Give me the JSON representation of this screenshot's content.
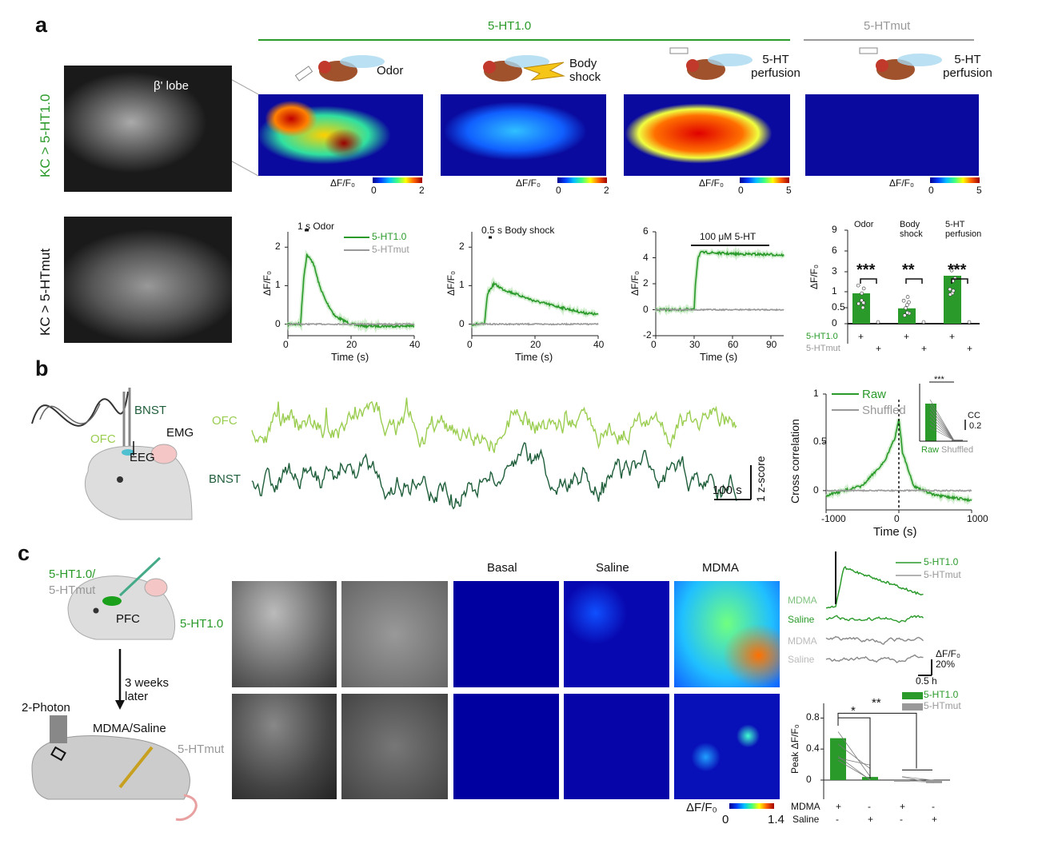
{
  "panel_labels": {
    "a": "a",
    "b": "b",
    "c": "c"
  },
  "colors": {
    "green": "#2a9a2a",
    "gray": "#999999",
    "ofc": "#9acd50",
    "bnst": "#1f5e3a"
  },
  "a": {
    "group_headers": [
      "5-HT1.0",
      "5-HTmut"
    ],
    "row_labels": [
      "KC > 5-HT1.0",
      "KC > 5-HTmut"
    ],
    "lobe_label": "β' lobe",
    "stimuli": [
      "Odor",
      "Body shock",
      "5-HT perfusion",
      "5-HT perfusion"
    ],
    "colorbars": [
      {
        "label": "ΔF/F₀",
        "min": "0",
        "max": "2"
      },
      {
        "label": "ΔF/F₀",
        "min": "0",
        "max": "2"
      },
      {
        "label": "ΔF/F₀",
        "min": "0",
        "max": "5"
      },
      {
        "label": "ΔF/F₀",
        "min": "0",
        "max": "5"
      }
    ],
    "heatmap_levels": [
      0.8,
      0.3,
      0.9,
      0.0
    ]
  },
  "chart_data": [
    {
      "type": "line",
      "title": "1 s Odor",
      "xlabel": "Time (s)",
      "ylabel": "ΔF/F₀",
      "xlim": [
        0,
        40
      ],
      "ylim": [
        -0.3,
        2.4
      ],
      "xticks": [
        "0",
        "20",
        "40"
      ],
      "yticks": [
        "0",
        "1",
        "2"
      ],
      "legend": [
        "5-HT1.0",
        "5-HTmut"
      ],
      "series": [
        {
          "name": "5-HT1.0",
          "x": [
            0,
            4,
            5,
            6,
            8,
            10,
            12,
            15,
            20,
            25,
            30,
            40
          ],
          "y": [
            0,
            0,
            1.2,
            1.8,
            1.6,
            1.0,
            0.6,
            0.2,
            0,
            -0.05,
            -0.05,
            -0.05
          ]
        },
        {
          "name": "5-HTmut",
          "x": [
            0,
            40
          ],
          "y": [
            0,
            0
          ]
        }
      ]
    },
    {
      "type": "line",
      "title": "0.5 s Body shock",
      "xlabel": "Time (s)",
      "ylabel": "ΔF/F₀",
      "xlim": [
        0,
        40
      ],
      "ylim": [
        -0.3,
        2.4
      ],
      "xticks": [
        "0",
        "20",
        "40"
      ],
      "yticks": [
        "0",
        "1",
        "2"
      ],
      "series": [
        {
          "name": "5-HT1.0",
          "x": [
            0,
            4,
            5,
            7,
            10,
            15,
            20,
            25,
            30,
            35,
            40
          ],
          "y": [
            0,
            0,
            0.8,
            1.05,
            0.9,
            0.75,
            0.6,
            0.5,
            0.4,
            0.3,
            0.25
          ]
        },
        {
          "name": "5-HTmut",
          "x": [
            0,
            40
          ],
          "y": [
            0,
            0
          ]
        }
      ]
    },
    {
      "type": "line",
      "title": "100 μM 5-HT",
      "xlabel": "Time (s)",
      "ylabel": "ΔF/F₀",
      "xlim": [
        0,
        100
      ],
      "ylim": [
        -2,
        6
      ],
      "xticks": [
        "0",
        "30",
        "60",
        "90"
      ],
      "yticks": [
        "-2",
        "0",
        "2",
        "4",
        "6"
      ],
      "series": [
        {
          "name": "5-HT1.0",
          "x": [
            0,
            30,
            31,
            33,
            35,
            40,
            60,
            90,
            100
          ],
          "y": [
            0,
            0,
            2,
            4,
            4.4,
            4.4,
            4.3,
            4.25,
            4.2
          ]
        },
        {
          "name": "5-HTmut",
          "x": [
            0,
            100
          ],
          "y": [
            0,
            0
          ]
        }
      ]
    },
    {
      "type": "bar",
      "ylabel": "ΔF/F₀",
      "categories": [
        "Odor",
        "Body shock",
        "5-HT perfusion"
      ],
      "yticks": [
        "0",
        "0.5",
        "1",
        "3",
        "6",
        "9"
      ],
      "series": [
        {
          "name": "5-HT1.0",
          "values": [
            0.95,
            0.48,
            2.6
          ]
        },
        {
          "name": "5-HTmut",
          "values": [
            0.0,
            0.0,
            0.05
          ]
        }
      ],
      "significance": [
        "***",
        "**",
        "***"
      ],
      "row_labels": [
        "5-HT1.0",
        "5-HTmut"
      ],
      "plus": "+"
    },
    {
      "type": "line",
      "title": "Cross correlation",
      "xlabel": "Time (s)",
      "ylabel": "Cross correlation",
      "xlim": [
        -1000,
        1000
      ],
      "ylim": [
        -0.2,
        1
      ],
      "xticks": [
        "-1000",
        "0",
        "1000"
      ],
      "yticks": [
        "0",
        "0.5",
        "1"
      ],
      "legend": [
        "Raw",
        "Shuffled"
      ],
      "series": [
        {
          "name": "Raw",
          "x": [
            -1000,
            -500,
            -200,
            -50,
            0,
            50,
            200,
            500,
            1000
          ],
          "y": [
            -0.05,
            0.05,
            0.3,
            0.55,
            0.75,
            0.4,
            0.05,
            -0.05,
            -0.1
          ]
        },
        {
          "name": "Shuffled",
          "x": [
            -1000,
            1000
          ],
          "y": [
            0,
            0
          ]
        }
      ],
      "inset": {
        "categories": [
          "Raw",
          "Shuffled"
        ],
        "values": [
          0.9,
          0.05
        ],
        "significance": "***",
        "scale_label": "CC",
        "scale_value": "0.2"
      }
    },
    {
      "type": "bar",
      "ylabel": "Peak ΔF/F₀",
      "yticks": [
        "0",
        "0.4",
        "0.8"
      ],
      "ylim": [
        -0.2,
        1
      ],
      "categories": [
        "MDMA+ 5-HT1.0",
        "Saline+ 5-HT1.0",
        "MDMA+ 5-HTmut",
        "Saline+ 5-HTmut"
      ],
      "values": [
        0.54,
        0.04,
        -0.01,
        -0.04
      ],
      "legend": [
        "5-HT1.0",
        "5-HTmut"
      ],
      "significance": [
        "*",
        "**"
      ],
      "row_labels": [
        "MDMA",
        "Saline"
      ],
      "mdma_signs": [
        "+",
        "-",
        "+",
        "-"
      ],
      "saline_signs": [
        "-",
        "+",
        "-",
        "+"
      ]
    }
  ],
  "b": {
    "labels": {
      "bnst": "BNST",
      "ofc": "OFC",
      "emg": "EMG",
      "eeg": "EEG"
    },
    "trace_labels": [
      "OFC",
      "BNST"
    ],
    "scale_x": "100 s",
    "scale_y": "1 z-score"
  },
  "c": {
    "injection_label_1": "5-HT1.0/",
    "injection_label_2": "5-HTmut",
    "pfc": "PFC",
    "wait": "3 weeks later",
    "two_photon": "2-Photon",
    "drug": "MDMA/Saline",
    "row_labels": [
      "5-HT1.0",
      "5-HTmut"
    ],
    "columns": [
      "Basal",
      "Saline",
      "MDMA"
    ],
    "colorbar": {
      "label": "ΔF/F₀",
      "min": "0",
      "max": "1.4"
    },
    "trace_legend": [
      "5-HT1.0",
      "5-HTmut"
    ],
    "trace_labels": [
      "MDMA",
      "Saline",
      "MDMA",
      "Saline"
    ],
    "scale_y": "ΔF/F₀ 20%",
    "scale_x": "0.5 h"
  }
}
